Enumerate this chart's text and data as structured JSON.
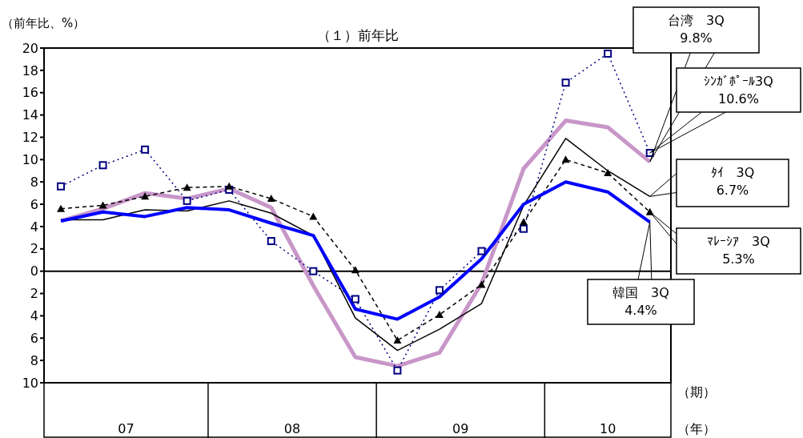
{
  "chart_data": {
    "type": "line",
    "title": "（１）前年比",
    "ylabel": "（前年比、%）",
    "xlabel": "（期）",
    "categories": [
      null,
      null,
      null,
      null,
      null,
      null,
      null,
      null,
      null,
      null,
      null,
      null,
      null,
      null,
      null
    ],
    "ylim": [
      -10,
      20
    ],
    "yticks": [
      {
        "value": -10,
        "label": "10"
      },
      {
        "value": -8,
        "label": "8"
      },
      {
        "value": -6,
        "label": "6"
      },
      {
        "value": -4,
        "label": "4"
      },
      {
        "value": -2,
        "label": "2"
      },
      0,
      2,
      4,
      6,
      8,
      10,
      12,
      14,
      16,
      18,
      20
    ],
    "grid": false,
    "legend": false,
    "ref_lines": [
      {
        "axis": "y",
        "value": 0,
        "color": "#000000"
      }
    ],
    "series": [
      {
        "color": "#c896c8",
        "line_style": "solid",
        "marker": "none",
        "values": [
          4.5,
          5.6,
          7.0,
          6.5,
          7.4,
          5.7,
          -1.3,
          -7.7,
          -8.5,
          -7.3,
          -1.1,
          9.2,
          13.5,
          12.9,
          9.8
        ]
      },
      {
        "color": "#000080",
        "line_style": "dotted",
        "marker": "square",
        "values": [
          7.6,
          9.5,
          10.9,
          6.3,
          7.3,
          2.7,
          0.0,
          -2.5,
          -8.9,
          -1.7,
          1.8,
          3.8,
          16.9,
          19.5,
          10.6
        ]
      },
      {
        "color": "#000000",
        "line_style": "solid",
        "marker": "none",
        "values": [
          4.6,
          4.6,
          5.5,
          5.4,
          6.3,
          5.2,
          3.2,
          -4.2,
          -7.1,
          -5.2,
          -2.9,
          5.9,
          11.9,
          9.0,
          6.7
        ]
      },
      {
        "color": "#000000",
        "line_style": "dashed",
        "marker": "triangle",
        "values": [
          5.6,
          5.9,
          6.7,
          7.5,
          7.6,
          6.5,
          4.9,
          0.1,
          -6.2,
          -3.9,
          -1.2,
          4.4,
          10.0,
          8.8,
          5.3
        ]
      },
      {
        "color": "#0000ff",
        "line_style": "solid",
        "marker": "none",
        "values": [
          4.5,
          5.3,
          4.9,
          5.7,
          5.5,
          4.3,
          3.2,
          -3.4,
          -4.3,
          -2.3,
          1.1,
          6.0,
          8.0,
          7.1,
          4.4
        ]
      }
    ],
    "annotations": [
      "台湾　3Q\n9.8%",
      "ｼﾝｶﾞﾎﾟｰﾙ3Q\n10.6%",
      "ﾀｲ　3Q\n6.7%",
      "ﾏﾚｰｼｱ　3Q\n5.3%",
      "韓国　3Q\n4.4%",
      "07",
      "08",
      "09",
      "10",
      "（年）"
    ]
  }
}
